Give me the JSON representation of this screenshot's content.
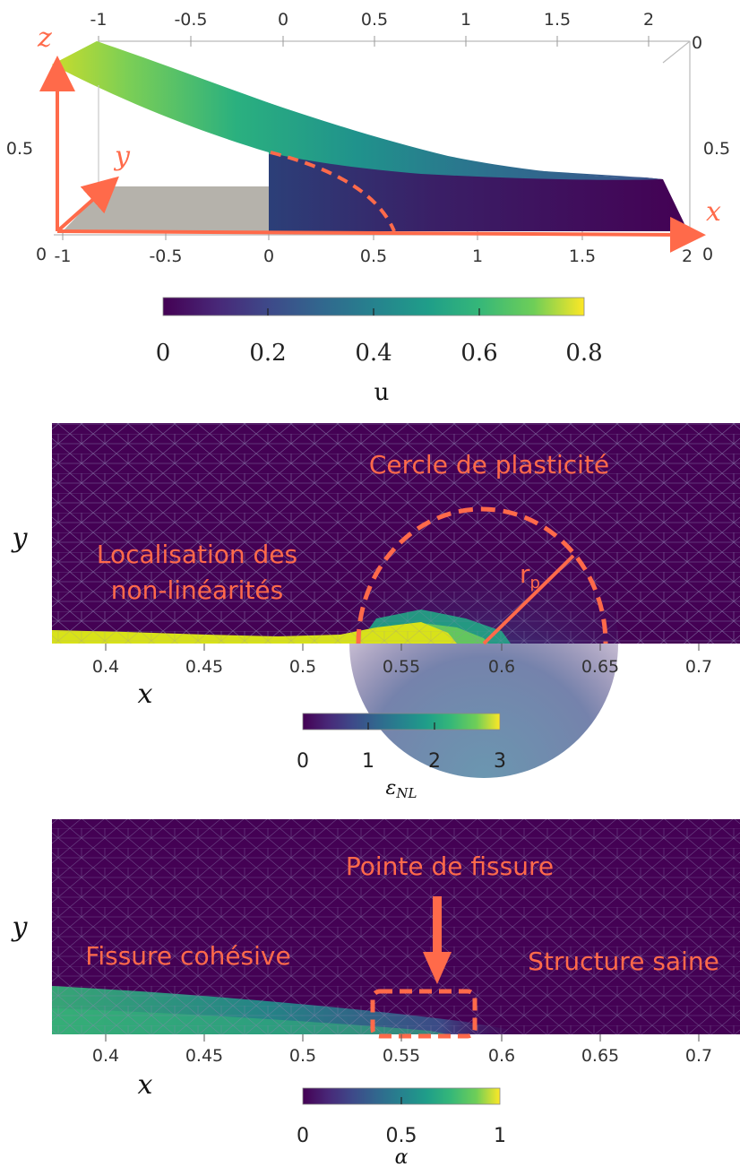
{
  "panel1": {
    "top_ticks": [
      "-1",
      "-0.5",
      "0",
      "0.5",
      "1",
      "1.5",
      "2"
    ],
    "bottom_ticks": [
      "-1",
      "-0.5",
      "0",
      "0.5",
      "1",
      "1.5",
      "2"
    ],
    "left_tick_0": "0",
    "left_tick_05": "0.5",
    "right_tick_0_top": "0",
    "right_tick_05": "0.5",
    "right_tick_0_bottom": "0",
    "axis_x": "x",
    "axis_y": "y",
    "axis_z": "z",
    "colorbar_ticks": [
      "0",
      "0.2",
      "0.4",
      "0.6",
      "0.8"
    ],
    "colorbar_label": "u"
  },
  "panel2": {
    "title_annotation": "Cercle de plasticité",
    "left_annotation_line1": "Localisation des",
    "left_annotation_line2": "non-linéarités",
    "radius_label": "r",
    "radius_sub": "p",
    "x_ticks": [
      "0.4",
      "0.45",
      "0.5",
      "0.55",
      "0.6",
      "0.65",
      "0.7"
    ],
    "axis_x": "x",
    "axis_y": "y",
    "colorbar_ticks": [
      "0",
      "1",
      "2",
      "3"
    ],
    "colorbar_label_main": "ε",
    "colorbar_label_sub": "NL"
  },
  "panel3": {
    "tip_annotation": "Pointe de fissure",
    "left_annotation": "Fissure cohésive",
    "right_annotation": "Structure saine",
    "x_ticks": [
      "0.4",
      "0.45",
      "0.5",
      "0.55",
      "0.6",
      "0.65",
      "0.7"
    ],
    "axis_x": "x",
    "axis_y": "y",
    "colorbar_ticks": [
      "0",
      "0.5",
      "1"
    ],
    "colorbar_label": "α"
  },
  "colors": {
    "annotation": "#ff6a4a",
    "viridis_low": "#440154",
    "viridis_mid": "#21918c",
    "viridis_high": "#fde725",
    "grey_region": "#b5b2ab"
  }
}
